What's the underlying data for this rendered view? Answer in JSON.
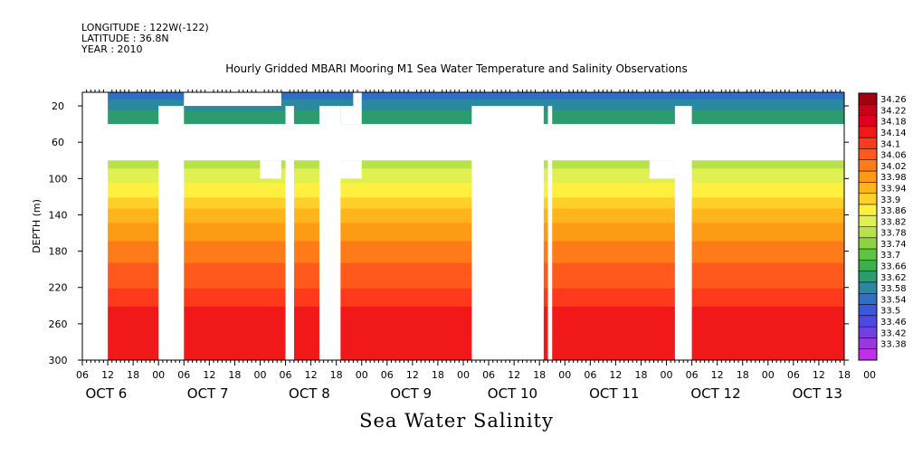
{
  "header": {
    "longitude": "LONGITUDE : 122W(-122)",
    "latitude": "LATITUDE : 36.8N",
    "year": "YEAR : 2010"
  },
  "chart_data": {
    "type": "heatmap",
    "title": "Hourly Gridded MBARI Mooring M1 Sea Water Temperature and Salinity Observations",
    "xlabel": "Sea Water Salinity",
    "ylabel": "DEPTH (m)",
    "xlim_hours": [
      0,
      180
    ],
    "x_start_label": "06",
    "ylim": [
      300,
      5
    ],
    "y_ticks": [
      20,
      60,
      100,
      140,
      180,
      220,
      260,
      300
    ],
    "x_hour_ticks": [
      "06",
      "12",
      "18",
      "00",
      "06",
      "12",
      "18",
      "00",
      "06",
      "12",
      "18",
      "00",
      "06",
      "12",
      "18",
      "00",
      "06",
      "12",
      "18",
      "00",
      "06",
      "12",
      "18",
      "00",
      "06",
      "12",
      "18",
      "00",
      "06",
      "12",
      "18",
      "00"
    ],
    "date_labels": [
      "OCT  6",
      "OCT  7",
      "OCT  8",
      "OCT  9",
      "OCT 10",
      "OCT 11",
      "OCT 12",
      "OCT 13"
    ],
    "colorbar_levels": [
      "34.26",
      "34.22",
      "34.18",
      "34.14",
      "34.1",
      "34.06",
      "34.02",
      "33.98",
      "33.94",
      "33.9",
      "33.86",
      "33.82",
      "33.78",
      "33.74",
      "33.7",
      "33.66",
      "33.62",
      "33.58",
      "33.54",
      "33.5",
      "33.46",
      "33.42",
      "33.38"
    ],
    "colorbar_colors": [
      "#a00010",
      "#c8001e",
      "#e0001e",
      "#f01818",
      "#ff3a1c",
      "#ff5a1c",
      "#ff7a18",
      "#ff9a14",
      "#ffb41c",
      "#ffd02a",
      "#fff040",
      "#e0f050",
      "#b8e24a",
      "#8cd444",
      "#5ec440",
      "#3cb04c",
      "#2a9c70",
      "#2a88a0",
      "#2e70c8",
      "#3a58dc",
      "#5048e4",
      "#7040e0",
      "#9a38e0",
      "#c030e8"
    ],
    "depth_profile": [
      {
        "depth": 5,
        "value": 33.54
      },
      {
        "depth": 20,
        "value": 33.6
      },
      {
        "depth": 40,
        "value": 33.66
      },
      {
        "depth": 80,
        "value": 33.8
      },
      {
        "depth": 100,
        "value": 33.84
      },
      {
        "depth": 140,
        "value": 33.96
      },
      {
        "depth": 180,
        "value": 34.04
      },
      {
        "depth": 220,
        "value": 34.1
      },
      {
        "depth": 260,
        "value": 34.18
      },
      {
        "depth": 300,
        "value": 34.14
      }
    ],
    "data_gaps": [
      {
        "from_hour": 0,
        "to_hour": 6,
        "depth_from": 5,
        "depth_to": 300
      },
      {
        "from_hour": 0,
        "to_hour": 180,
        "depth_from": 40,
        "depth_to": 80
      },
      {
        "from_hour": 0,
        "to_hour": 6,
        "depth_from": 5,
        "depth_to": 300
      },
      {
        "from_hour": 18,
        "to_hour": 24,
        "depth_from": 20,
        "depth_to": 300
      },
      {
        "from_hour": 24,
        "to_hour": 47,
        "depth_from": 5,
        "depth_to": 20
      },
      {
        "from_hour": 42,
        "to_hour": 47,
        "depth_from": 80,
        "depth_to": 100
      },
      {
        "from_hour": 48,
        "to_hour": 50,
        "depth_from": 20,
        "depth_to": 300
      },
      {
        "from_hour": 48,
        "to_hour": 50,
        "depth_from": 80,
        "depth_to": 300
      },
      {
        "from_hour": 56,
        "to_hour": 61,
        "depth_from": 20,
        "depth_to": 300
      },
      {
        "from_hour": 61,
        "to_hour": 66,
        "depth_from": 20,
        "depth_to": 40
      },
      {
        "from_hour": 64,
        "to_hour": 66,
        "depth_from": 5,
        "depth_to": 20
      },
      {
        "from_hour": 56,
        "to_hour": 66,
        "depth_from": 80,
        "depth_to": 100
      },
      {
        "from_hour": 92,
        "to_hour": 109,
        "depth_from": 20,
        "depth_to": 300
      },
      {
        "from_hour": 106,
        "to_hour": 109,
        "depth_from": 80,
        "depth_to": 100
      },
      {
        "from_hour": 110,
        "to_hour": 111,
        "depth_from": 20,
        "depth_to": 300
      },
      {
        "from_hour": 134,
        "to_hour": 140,
        "depth_from": 80,
        "depth_to": 100
      },
      {
        "from_hour": 140,
        "to_hour": 144,
        "depth_from": 20,
        "depth_to": 300
      }
    ]
  },
  "footer_label": "Sea Water Salinity"
}
